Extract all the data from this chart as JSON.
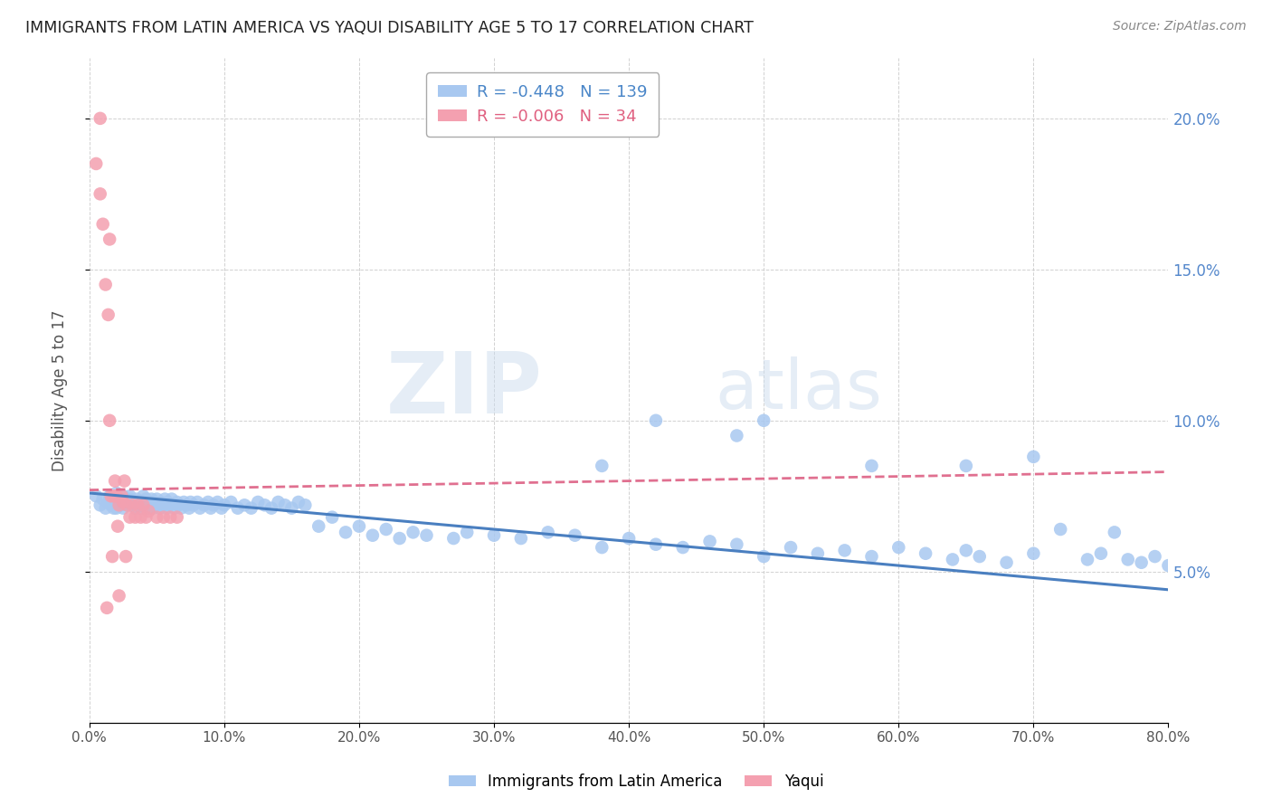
{
  "title": "IMMIGRANTS FROM LATIN AMERICA VS YAQUI DISABILITY AGE 5 TO 17 CORRELATION CHART",
  "source": "Source: ZipAtlas.com",
  "ylabel": "Disability Age 5 to 17",
  "xlim": [
    0.0,
    0.8
  ],
  "ylim": [
    0.0,
    0.22
  ],
  "xticks": [
    0.0,
    0.1,
    0.2,
    0.3,
    0.4,
    0.5,
    0.6,
    0.7,
    0.8
  ],
  "yticks": [
    0.05,
    0.1,
    0.15,
    0.2
  ],
  "legend_r_blue": "-0.448",
  "legend_n_blue": "139",
  "legend_r_pink": "-0.006",
  "legend_n_pink": "34",
  "blue_color": "#a8c8f0",
  "pink_color": "#f4a0b0",
  "blue_line_color": "#4a7fc0",
  "pink_line_color": "#e07090",
  "watermark_zip": "ZIP",
  "watermark_atlas": "atlas",
  "blue_x": [
    0.005,
    0.008,
    0.01,
    0.012,
    0.014,
    0.015,
    0.016,
    0.018,
    0.018,
    0.02,
    0.02,
    0.02,
    0.022,
    0.023,
    0.024,
    0.025,
    0.025,
    0.026,
    0.027,
    0.028,
    0.03,
    0.03,
    0.031,
    0.032,
    0.033,
    0.034,
    0.035,
    0.036,
    0.037,
    0.038,
    0.04,
    0.04,
    0.041,
    0.042,
    0.043,
    0.044,
    0.045,
    0.046,
    0.047,
    0.048,
    0.05,
    0.051,
    0.052,
    0.053,
    0.055,
    0.056,
    0.057,
    0.058,
    0.06,
    0.061,
    0.063,
    0.065,
    0.066,
    0.068,
    0.07,
    0.072,
    0.074,
    0.075,
    0.077,
    0.08,
    0.082,
    0.085,
    0.088,
    0.09,
    0.092,
    0.095,
    0.098,
    0.1,
    0.105,
    0.11,
    0.115,
    0.12,
    0.125,
    0.13,
    0.135,
    0.14,
    0.145,
    0.15,
    0.155,
    0.16,
    0.17,
    0.18,
    0.19,
    0.2,
    0.21,
    0.22,
    0.23,
    0.24,
    0.25,
    0.27,
    0.28,
    0.3,
    0.32,
    0.34,
    0.36,
    0.38,
    0.4,
    0.42,
    0.44,
    0.46,
    0.48,
    0.5,
    0.52,
    0.54,
    0.56,
    0.58,
    0.6,
    0.62,
    0.64,
    0.65,
    0.66,
    0.68,
    0.7,
    0.72,
    0.74,
    0.75,
    0.76,
    0.77,
    0.78,
    0.79,
    0.8
  ],
  "blue_y": [
    0.075,
    0.072,
    0.074,
    0.071,
    0.073,
    0.075,
    0.072,
    0.074,
    0.071,
    0.076,
    0.073,
    0.071,
    0.074,
    0.072,
    0.073,
    0.075,
    0.071,
    0.073,
    0.074,
    0.072,
    0.075,
    0.073,
    0.074,
    0.072,
    0.073,
    0.071,
    0.074,
    0.072,
    0.073,
    0.071,
    0.073,
    0.075,
    0.072,
    0.074,
    0.071,
    0.073,
    0.072,
    0.074,
    0.071,
    0.073,
    0.074,
    0.072,
    0.071,
    0.073,
    0.072,
    0.074,
    0.071,
    0.073,
    0.072,
    0.074,
    0.071,
    0.073,
    0.072,
    0.071,
    0.073,
    0.072,
    0.071,
    0.073,
    0.072,
    0.073,
    0.071,
    0.072,
    0.073,
    0.071,
    0.072,
    0.073,
    0.071,
    0.072,
    0.073,
    0.071,
    0.072,
    0.071,
    0.073,
    0.072,
    0.071,
    0.073,
    0.072,
    0.071,
    0.073,
    0.072,
    0.065,
    0.068,
    0.063,
    0.065,
    0.062,
    0.064,
    0.061,
    0.063,
    0.062,
    0.061,
    0.063,
    0.062,
    0.061,
    0.063,
    0.062,
    0.058,
    0.061,
    0.059,
    0.058,
    0.06,
    0.059,
    0.055,
    0.058,
    0.056,
    0.057,
    0.055,
    0.058,
    0.056,
    0.054,
    0.057,
    0.055,
    0.053,
    0.056,
    0.064,
    0.054,
    0.056,
    0.063,
    0.054,
    0.053,
    0.055,
    0.052
  ],
  "blue_y_outliers_x": [
    0.38,
    0.42,
    0.48,
    0.5,
    0.58,
    0.65,
    0.7
  ],
  "blue_y_outliers_y": [
    0.085,
    0.1,
    0.095,
    0.1,
    0.085,
    0.085,
    0.088
  ],
  "pink_x": [
    0.005,
    0.008,
    0.008,
    0.01,
    0.012,
    0.014,
    0.015,
    0.016,
    0.018,
    0.019,
    0.02,
    0.022,
    0.024,
    0.025,
    0.026,
    0.028,
    0.03,
    0.032,
    0.034,
    0.036,
    0.038,
    0.04,
    0.042,
    0.044,
    0.015,
    0.05,
    0.055,
    0.06,
    0.065,
    0.022,
    0.013,
    0.017,
    0.021,
    0.027
  ],
  "pink_y": [
    0.185,
    0.175,
    0.2,
    0.165,
    0.145,
    0.135,
    0.16,
    0.075,
    0.075,
    0.08,
    0.075,
    0.072,
    0.075,
    0.073,
    0.08,
    0.072,
    0.068,
    0.072,
    0.068,
    0.072,
    0.068,
    0.072,
    0.068,
    0.07,
    0.1,
    0.068,
    0.068,
    0.068,
    0.068,
    0.042,
    0.038,
    0.055,
    0.065,
    0.055
  ],
  "blue_trendline_x": [
    0.0,
    0.8
  ],
  "blue_trendline_y": [
    0.076,
    0.044
  ],
  "pink_trendline_x": [
    0.0,
    0.8
  ],
  "pink_trendline_y": [
    0.077,
    0.083
  ]
}
